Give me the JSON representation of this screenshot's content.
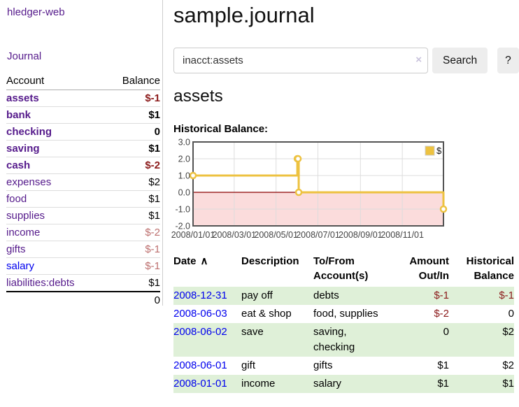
{
  "colors": {
    "link_purple": "#551a8b",
    "link_blue": "#0000ee",
    "negative_dark": "#8b1a1a",
    "negative_light": "#bd6f6e",
    "row_stripe_green": "#dff0d8"
  },
  "sidebar": {
    "brand": "hledger-web",
    "nav_journal": "Journal",
    "accounts": {
      "header_account": "Account",
      "header_balance": "Balance",
      "rows": [
        {
          "account": "assets",
          "balance": "$-1",
          "depth": 1,
          "bold": true,
          "negative": true
        },
        {
          "account": "bank",
          "balance": "$1",
          "depth": 2,
          "bold": true,
          "negative": false
        },
        {
          "account": "checking",
          "balance": "0",
          "depth": 3,
          "bold": true,
          "negative": false
        },
        {
          "account": "saving",
          "balance": "$1",
          "depth": 3,
          "bold": true,
          "negative": false
        },
        {
          "account": "cash",
          "balance": "$-2",
          "depth": 2,
          "bold": true,
          "negative": true
        },
        {
          "account": "expenses",
          "balance": "$2",
          "depth": 1,
          "bold": false,
          "negative": false
        },
        {
          "account": "food",
          "balance": "$1",
          "depth": 2,
          "bold": false,
          "negative": false
        },
        {
          "account": "supplies",
          "balance": "$1",
          "depth": 2,
          "bold": false,
          "negative": false
        },
        {
          "account": "income",
          "balance": "$-2",
          "depth": 1,
          "bold": false,
          "negative": true
        },
        {
          "account": "gifts",
          "balance": "$-1",
          "depth": 2,
          "bold": false,
          "negative": true
        },
        {
          "account": "salary",
          "balance": "$-1",
          "depth": 2,
          "bold": false,
          "negative": true,
          "link_color": "blue"
        },
        {
          "account": "liabilities:debts",
          "balance": "$1",
          "depth": 1,
          "bold": false,
          "negative": false
        }
      ],
      "total": "0"
    }
  },
  "main": {
    "title": "sample.journal",
    "search": {
      "value": "inacct:assets",
      "clear_icon": "×",
      "button_label": "Search",
      "help_label": "?"
    },
    "account_heading": "assets",
    "chart_label": "Historical Balance:"
  },
  "chart_data": {
    "type": "line",
    "step": true,
    "title": "Historical Balance",
    "x_range": [
      "2008-01-01",
      "2008-12-31"
    ],
    "ylim": [
      -2.0,
      3.0
    ],
    "yticks": [
      3.0,
      2.0,
      1.0,
      0.0,
      -1.0,
      -2.0
    ],
    "xticks": [
      {
        "date": "2008-01-01",
        "label": "2008/01/01"
      },
      {
        "date": "2008-03-01",
        "label": "2008/03/01"
      },
      {
        "date": "2008-05-01",
        "label": "2008/05/01"
      },
      {
        "date": "2008-07-01",
        "label": "2008/07/01"
      },
      {
        "date": "2008-09-01",
        "label": "2008/09/01"
      },
      {
        "date": "2008-11-01",
        "label": "2008/11/01"
      }
    ],
    "grid": true,
    "legend_position": "top-right",
    "series": [
      {
        "name": "$",
        "points": [
          {
            "date": "2008-01-01",
            "value": 1
          },
          {
            "date": "2008-06-01",
            "value": 2
          },
          {
            "date": "2008-06-02",
            "value": 2
          },
          {
            "date": "2008-06-03",
            "value": 0
          },
          {
            "date": "2008-12-31",
            "value": -1
          }
        ]
      }
    ],
    "colors": {
      "series": "#edc240",
      "negative_region": "#fbdcdc",
      "zero_line": "#8b0000",
      "grid": "#dddddd",
      "border": "#545454"
    }
  },
  "register": {
    "headers": [
      {
        "line1": "Date",
        "line2": "",
        "sort": "∧"
      },
      {
        "line1": "Description",
        "line2": ""
      },
      {
        "line1": "To/From",
        "line2": "Account(s)"
      },
      {
        "line1": "Amount",
        "line2": "Out/In"
      },
      {
        "line1": "Historical",
        "line2": "Balance"
      }
    ],
    "rows": [
      {
        "date": "2008-12-31",
        "description": "pay off",
        "accounts": "debts",
        "amount": "$-1",
        "balance": "$-1",
        "amount_negative": true,
        "balance_negative": true
      },
      {
        "date": "2008-06-03",
        "description": "eat & shop",
        "accounts": "food, supplies",
        "amount": "$-2",
        "balance": "0",
        "amount_negative": true,
        "balance_negative": false
      },
      {
        "date": "2008-06-02",
        "description": "save",
        "accounts": "saving, checking",
        "amount": "0",
        "balance": "$2",
        "amount_negative": false,
        "balance_negative": false
      },
      {
        "date": "2008-06-01",
        "description": "gift",
        "accounts": "gifts",
        "amount": "$1",
        "balance": "$2",
        "amount_negative": false,
        "balance_negative": false
      },
      {
        "date": "2008-01-01",
        "description": "income",
        "accounts": "salary",
        "amount": "$1",
        "balance": "$1",
        "amount_negative": false,
        "balance_negative": false
      }
    ]
  }
}
